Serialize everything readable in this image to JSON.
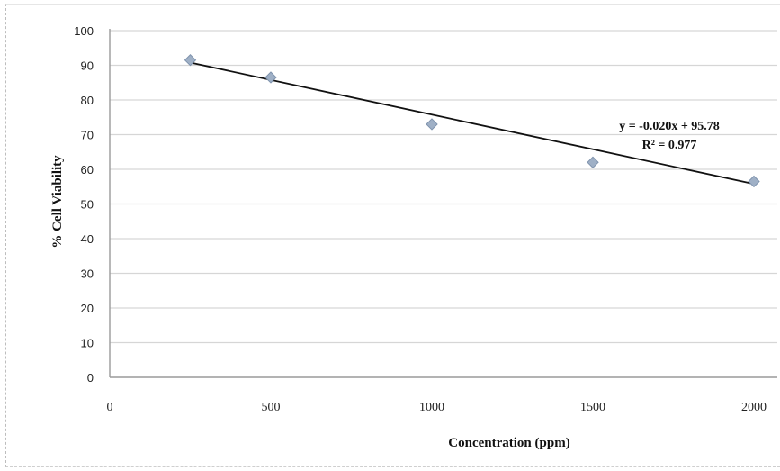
{
  "chart_data": {
    "type": "scatter",
    "title": "",
    "xlabel": "Concentration (ppm)",
    "ylabel": "% Cell Viability",
    "xlim": [
      0,
      2000
    ],
    "ylim": [
      0,
      100
    ],
    "x_ticks": [
      "0",
      "500",
      "1000",
      "1500",
      "2000"
    ],
    "x_tick_values": [
      0,
      500,
      1000,
      1500,
      2000
    ],
    "y_ticks": [
      "0",
      "10",
      "20",
      "30",
      "40",
      "50",
      "60",
      "70",
      "80",
      "90",
      "100"
    ],
    "y_tick_values": [
      0,
      10,
      20,
      30,
      40,
      50,
      60,
      70,
      80,
      90,
      100
    ],
    "grid": "horizontal",
    "legend": "none",
    "series": [
      {
        "x": [
          250,
          500,
          1000,
          1500,
          2000
        ],
        "y": [
          91.5,
          86.5,
          73,
          62,
          56.5
        ],
        "marker": "diamond",
        "color": "#9fb0c6"
      }
    ],
    "trendline": {
      "type": "linear",
      "slope": -0.02,
      "intercept": 95.78,
      "x_range": [
        250,
        2000
      ],
      "color": "#111111"
    },
    "annotations": {
      "equation": "y = -0.020x + 95.78",
      "r_squared": "R² = 0.977"
    }
  }
}
